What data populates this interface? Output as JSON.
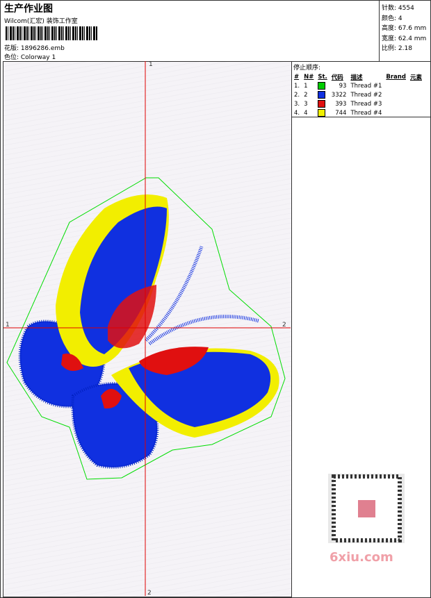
{
  "header": {
    "title": "生产作业图",
    "studio": "Wilcom(汇宏) 装饰工作室",
    "design": "花版: 1896286.emb",
    "colorway": "色位: Colorway 1"
  },
  "stats": [
    "针数: 4554",
    "颜色: 4",
    "高度: 67.6 mm",
    "宽度: 62.4 mm",
    "比例: 2.18"
  ],
  "stop_sequence": {
    "title": "停止顺序:",
    "columns": [
      "#",
      "N#",
      "St.",
      "代码",
      "描述",
      "Brand",
      "元素"
    ],
    "rows": [
      {
        "index": "1.",
        "needle": "1",
        "color": "#00cc00",
        "stitches": "93",
        "description": "Thread #1"
      },
      {
        "index": "2.",
        "needle": "2",
        "color": "#1030e0",
        "stitches": "3322",
        "description": "Thread #2"
      },
      {
        "index": "3.",
        "needle": "3",
        "color": "#e01010",
        "stitches": "393",
        "description": "Thread #3"
      },
      {
        "index": "4.",
        "needle": "4",
        "color": "#f0f000",
        "stitches": "744",
        "description": "Thread #4"
      }
    ]
  },
  "axes": {
    "top": "1",
    "bottom": "2",
    "left": "1",
    "right": "2"
  },
  "watermark": "6xiu.com"
}
